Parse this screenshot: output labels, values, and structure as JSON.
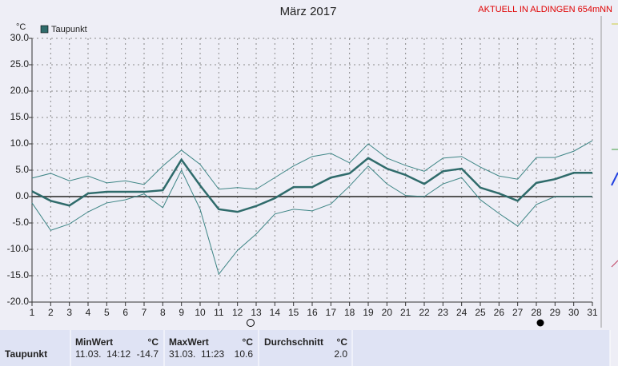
{
  "chart_data": {
    "type": "line",
    "title": "März 2017",
    "subtitle": "AKTUELL IN ALDINGEN 654mNN",
    "y_label": "°C",
    "x": [
      1,
      2,
      3,
      4,
      5,
      6,
      7,
      8,
      9,
      10,
      11,
      12,
      13,
      14,
      15,
      16,
      17,
      18,
      19,
      20,
      21,
      22,
      23,
      24,
      25,
      26,
      27,
      28,
      29,
      30,
      31
    ],
    "xlim": [
      1,
      31
    ],
    "xticks": [
      1,
      2,
      3,
      4,
      5,
      6,
      7,
      8,
      9,
      10,
      11,
      12,
      13,
      14,
      15,
      16,
      17,
      18,
      19,
      20,
      21,
      22,
      23,
      24,
      25,
      26,
      27,
      28,
      29,
      30,
      31
    ],
    "ylim": [
      -20,
      30
    ],
    "yticks": [
      {
        "value": -20,
        "label": "-20.0"
      },
      {
        "value": -15,
        "label": "-15.0"
      },
      {
        "value": -10,
        "label": "-10.0"
      },
      {
        "value": -5,
        "label": "-5.0"
      },
      {
        "value": 0,
        "label": "0.0"
      },
      {
        "value": 5,
        "label": "5.0"
      },
      {
        "value": 10,
        "label": "10.0"
      },
      {
        "value": 15,
        "label": "15.0"
      },
      {
        "value": 20,
        "label": "20.0"
      },
      {
        "value": 25,
        "label": "25.0"
      },
      {
        "value": 30,
        "label": "30.0"
      }
    ],
    "grid": true,
    "series": [
      {
        "name": "Taupunkt",
        "color": "#2f6b6b",
        "width": 2.5,
        "values": [
          1.0,
          -0.8,
          -1.7,
          0.6,
          0.9,
          0.9,
          0.9,
          1.2,
          7.0,
          2.1,
          -2.4,
          -2.9,
          -1.8,
          -0.3,
          1.8,
          1.8,
          3.6,
          4.4,
          7.3,
          5.3,
          4.1,
          2.4,
          4.8,
          5.3,
          1.7,
          0.6,
          -0.8,
          2.6,
          3.3,
          4.5,
          4.5
        ]
      },
      {
        "color": "#3d8585",
        "width": 1,
        "values": [
          3.5,
          4.4,
          3.0,
          3.9,
          2.6,
          3.0,
          2.3,
          5.8,
          8.8,
          6.1,
          1.4,
          1.7,
          1.4,
          3.6,
          5.8,
          7.6,
          8.2,
          6.4,
          10.0,
          7.3,
          5.9,
          4.8,
          7.3,
          7.6,
          5.6,
          3.9,
          3.3,
          7.4,
          7.4,
          8.6,
          10.6
        ]
      },
      {
        "color": "#3d8585",
        "width": 1,
        "values": [
          -1.2,
          -6.4,
          -5.2,
          -2.9,
          -1.2,
          -0.6,
          0.5,
          -2.1,
          5.0,
          -2.4,
          -14.7,
          -10.2,
          -7.1,
          -3.3,
          -2.4,
          -2.7,
          -1.4,
          2.0,
          5.8,
          2.4,
          0.2,
          0.0,
          2.4,
          3.6,
          -0.6,
          -3.2,
          -5.6,
          -1.5,
          0.0,
          0.0,
          0.0
        ]
      }
    ]
  },
  "stats": {
    "row_label": "Taupunkt",
    "columns": [
      {
        "label": "MinWert",
        "unit": "°C"
      },
      {
        "label": "MaxWert",
        "unit": "°C"
      },
      {
        "label": "Durchschnitt",
        "unit": "°C"
      }
    ],
    "min_time": "11.03.  14:12",
    "min_value": "-14.7",
    "max_time": "31.03.  11:23",
    "max_value": "10.6",
    "average": "2.0"
  }
}
